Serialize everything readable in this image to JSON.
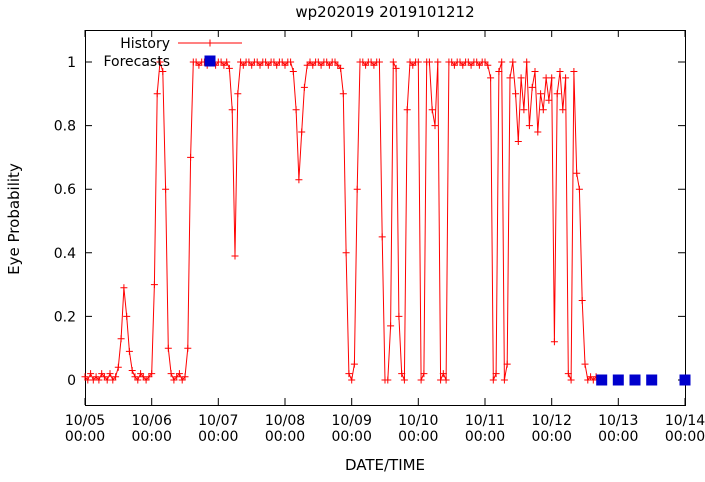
{
  "chart_data": {
    "type": "line",
    "title": "wp202019 2019101212",
    "xlabel": "DATE/TIME",
    "ylabel": "Eye Probability",
    "legend_position": "top-left",
    "grid": false,
    "xlim_hours": [
      0,
      216
    ],
    "ylim": [
      -0.08,
      1.1
    ],
    "x_tick_time": "00:00",
    "x_tick_dates": [
      "10/05",
      "10/06",
      "10/07",
      "10/08",
      "10/09",
      "10/10",
      "10/11",
      "10/12",
      "10/13",
      "10/14"
    ],
    "y_tick_values": [
      0,
      0.2,
      0.4,
      0.6,
      0.8,
      1
    ],
    "y_tick_labels": [
      "0",
      "0.2",
      "0.4",
      "0.6",
      "0.8",
      "1"
    ],
    "x_unit": "hours since 10/05 00:00",
    "series": [
      {
        "name": "History",
        "style": "linespoints",
        "marker": "plus",
        "color": "#ff0000",
        "points": [
          [
            0,
            0.01
          ],
          [
            1,
            0
          ],
          [
            2,
            0.02
          ],
          [
            3,
            0
          ],
          [
            4,
            0.01
          ],
          [
            5,
            0
          ],
          [
            6,
            0.02
          ],
          [
            7,
            0.01
          ],
          [
            8,
            0
          ],
          [
            9,
            0.02
          ],
          [
            10,
            0
          ],
          [
            11,
            0.01
          ],
          [
            12,
            0.04
          ],
          [
            13,
            0.13
          ],
          [
            14,
            0.29
          ],
          [
            15,
            0.2
          ],
          [
            16,
            0.09
          ],
          [
            17,
            0.03
          ],
          [
            18,
            0.01
          ],
          [
            19,
            0
          ],
          [
            20,
            0.02
          ],
          [
            21,
            0.01
          ],
          [
            22,
            0
          ],
          [
            23,
            0.01
          ],
          [
            24,
            0.02
          ],
          [
            25,
            0.3
          ],
          [
            26,
            0.9
          ],
          [
            27,
            1
          ],
          [
            28,
            0.97
          ],
          [
            29,
            0.6
          ],
          [
            30,
            0.1
          ],
          [
            31,
            0.02
          ],
          [
            32,
            0
          ],
          [
            33,
            0.01
          ],
          [
            34,
            0.02
          ],
          [
            35,
            0
          ],
          [
            36,
            0.01
          ],
          [
            37,
            0.1
          ],
          [
            38,
            0.7
          ],
          [
            39,
            1
          ],
          [
            40,
            1
          ],
          [
            41,
            0.99
          ],
          [
            42,
            1
          ],
          [
            43,
            1
          ],
          [
            44,
            0.99
          ],
          [
            45,
            1
          ],
          [
            46,
            1
          ],
          [
            47,
            0.99
          ],
          [
            48,
            1
          ],
          [
            49,
            1
          ],
          [
            50,
            0.99
          ],
          [
            51,
            1
          ],
          [
            52,
            0.98
          ],
          [
            53,
            0.85
          ],
          [
            54,
            0.39
          ],
          [
            55,
            0.9
          ],
          [
            56,
            1
          ],
          [
            57,
            0.99
          ],
          [
            58,
            1
          ],
          [
            59,
            1
          ],
          [
            60,
            0.99
          ],
          [
            61,
            1
          ],
          [
            62,
            1
          ],
          [
            63,
            0.99
          ],
          [
            64,
            1
          ],
          [
            65,
            1
          ],
          [
            66,
            0.99
          ],
          [
            67,
            1
          ],
          [
            68,
            1
          ],
          [
            69,
            0.99
          ],
          [
            70,
            1
          ],
          [
            71,
            1
          ],
          [
            72,
            0.99
          ],
          [
            73,
            1
          ],
          [
            74,
            1
          ],
          [
            75,
            0.97
          ],
          [
            76,
            0.85
          ],
          [
            77,
            0.63
          ],
          [
            78,
            0.78
          ],
          [
            79,
            0.92
          ],
          [
            80,
            0.99
          ],
          [
            81,
            1
          ],
          [
            82,
            0.99
          ],
          [
            83,
            1
          ],
          [
            84,
            1
          ],
          [
            85,
            0.99
          ],
          [
            86,
            1
          ],
          [
            87,
            1
          ],
          [
            88,
            0.99
          ],
          [
            89,
            1
          ],
          [
            90,
            1
          ],
          [
            91,
            0.99
          ],
          [
            92,
            0.98
          ],
          [
            93,
            0.9
          ],
          [
            94,
            0.4
          ],
          [
            95,
            0.02
          ],
          [
            96,
            0
          ],
          [
            97,
            0.05
          ],
          [
            98,
            0.6
          ],
          [
            99,
            1
          ],
          [
            100,
            1
          ],
          [
            101,
            0.99
          ],
          [
            102,
            1
          ],
          [
            103,
            1
          ],
          [
            104,
            0.99
          ],
          [
            105,
            1
          ],
          [
            106,
            1
          ],
          [
            107,
            0.45
          ],
          [
            108,
            0
          ],
          [
            109,
            0
          ],
          [
            110,
            0.17
          ],
          [
            111,
            1
          ],
          [
            112,
            0.98
          ],
          [
            113,
            0.2
          ],
          [
            114,
            0.02
          ],
          [
            115,
            0
          ],
          [
            116,
            0.85
          ],
          [
            117,
            1
          ],
          [
            118,
            0.99
          ],
          [
            119,
            1
          ],
          [
            120,
            1
          ],
          [
            121,
            0
          ],
          [
            122,
            0.02
          ],
          [
            123,
            1
          ],
          [
            124,
            1
          ],
          [
            125,
            0.85
          ],
          [
            126,
            0.8
          ],
          [
            127,
            1
          ],
          [
            128,
            0
          ],
          [
            129,
            0.02
          ],
          [
            130,
            0
          ],
          [
            131,
            1
          ],
          [
            132,
            1
          ],
          [
            133,
            0.99
          ],
          [
            134,
            1
          ],
          [
            135,
            1
          ],
          [
            136,
            0.99
          ],
          [
            137,
            1
          ],
          [
            138,
            1
          ],
          [
            139,
            0.99
          ],
          [
            140,
            1
          ],
          [
            141,
            1
          ],
          [
            142,
            0.99
          ],
          [
            143,
            1
          ],
          [
            144,
            1
          ],
          [
            145,
            0.99
          ],
          [
            146,
            0.95
          ],
          [
            147,
            0
          ],
          [
            148,
            0.02
          ],
          [
            149,
            0.97
          ],
          [
            150,
            1
          ],
          [
            151,
            0
          ],
          [
            152,
            0.05
          ],
          [
            153,
            0.95
          ],
          [
            154,
            1
          ],
          [
            155,
            0.9
          ],
          [
            156,
            0.75
          ],
          [
            157,
            0.95
          ],
          [
            158,
            0.85
          ],
          [
            159,
            1
          ],
          [
            160,
            0.8
          ],
          [
            161,
            0.92
          ],
          [
            162,
            0.97
          ],
          [
            163,
            0.78
          ],
          [
            164,
            0.9
          ],
          [
            165,
            0.85
          ],
          [
            166,
            0.95
          ],
          [
            167,
            0.88
          ],
          [
            168,
            0.95
          ],
          [
            169,
            0.12
          ],
          [
            170,
            0.9
          ],
          [
            171,
            0.97
          ],
          [
            172,
            0.85
          ],
          [
            173,
            0.95
          ],
          [
            174,
            0.02
          ],
          [
            175,
            0
          ],
          [
            176,
            0.97
          ],
          [
            177,
            0.65
          ],
          [
            178,
            0.6
          ],
          [
            179,
            0.25
          ],
          [
            180,
            0.05
          ],
          [
            181,
            0
          ],
          [
            182,
            0.01
          ],
          [
            183,
            0
          ],
          [
            184,
            0.01
          ]
        ]
      },
      {
        "name": "Forecasts",
        "style": "points",
        "marker": "filled-square",
        "color": "#0000cd",
        "points": [
          [
            186,
            0
          ],
          [
            192,
            0
          ],
          [
            198,
            0
          ],
          [
            204,
            0
          ],
          [
            216,
            0
          ]
        ]
      }
    ]
  }
}
